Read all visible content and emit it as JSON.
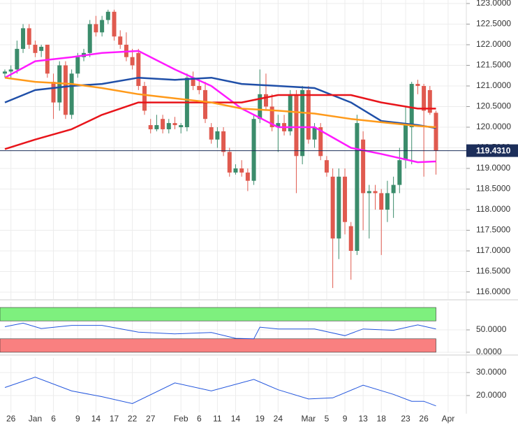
{
  "chart_data": [
    {
      "type": "candlestick",
      "xlim": [
        -0.8,
        76
      ],
      "xticks": [
        {
          "value": 1,
          "label": "26"
        },
        {
          "value": 5,
          "label": "Jan"
        },
        {
          "value": 8,
          "label": "6"
        },
        {
          "value": 12,
          "label": "9"
        },
        {
          "value": 15,
          "label": "14"
        },
        {
          "value": 18,
          "label": "17"
        },
        {
          "value": 21,
          "label": "22"
        },
        {
          "value": 24,
          "label": "27"
        },
        {
          "value": 29,
          "label": "Feb"
        },
        {
          "value": 32,
          "label": "6"
        },
        {
          "value": 35,
          "label": "11"
        },
        {
          "value": 38,
          "label": "14"
        },
        {
          "value": 42,
          "label": "19"
        },
        {
          "value": 45,
          "label": "24"
        },
        {
          "value": 50,
          "label": "Mar"
        },
        {
          "value": 53,
          "label": "5"
        },
        {
          "value": 56,
          "label": "9"
        },
        {
          "value": 59,
          "label": "13"
        },
        {
          "value": 62,
          "label": "18"
        },
        {
          "value": 66,
          "label": "23"
        },
        {
          "value": 69,
          "label": "26"
        },
        {
          "value": 73,
          "label": "Apr"
        }
      ],
      "ylim": [
        115.83,
        123.085
      ],
      "yticks": [
        {
          "value": 116,
          "label": "116.0000"
        },
        {
          "value": 116.5,
          "label": "116.5000"
        },
        {
          "value": 117,
          "label": "117.0000"
        },
        {
          "value": 117.5,
          "label": "117.5000"
        },
        {
          "value": 118,
          "label": "118.0000"
        },
        {
          "value": 118.5,
          "label": "118.5000"
        },
        {
          "value": 119,
          "label": "119.0000"
        },
        {
          "value": 119.5,
          "label": "119.5000"
        },
        {
          "value": 120,
          "label": "120.0000"
        },
        {
          "value": 120.5,
          "label": "120.5000"
        },
        {
          "value": 121,
          "label": "121.0000"
        },
        {
          "value": 121.5,
          "label": "121.5000"
        },
        {
          "value": 122,
          "label": "122.0000"
        },
        {
          "value": 122.5,
          "label": "122.5000"
        },
        {
          "value": 123,
          "label": "123.0000"
        }
      ],
      "grid": true,
      "up_color": "#3b8c6b",
      "down_color": "#e05a4f",
      "ohlc": [
        [
          121.3,
          121.4,
          121.2,
          121.35
        ],
        [
          121.35,
          121.5,
          121.2,
          121.4
        ],
        [
          121.4,
          122.1,
          121.3,
          121.9
        ],
        [
          121.9,
          122.5,
          121.8,
          122.4
        ],
        [
          122.4,
          122.5,
          121.9,
          122.0
        ],
        [
          122.0,
          122.1,
          121.7,
          121.8
        ],
        [
          121.85,
          122.0,
          121.7,
          121.95
        ],
        [
          122.0,
          122.0,
          121.2,
          121.3
        ],
        [
          121.1,
          121.3,
          120.2,
          120.6
        ],
        [
          120.6,
          121.6,
          120.4,
          121.5
        ],
        [
          121.5,
          121.6,
          120.2,
          120.3
        ],
        [
          120.3,
          121.4,
          120.2,
          121.3
        ],
        [
          121.3,
          121.8,
          121.2,
          121.7
        ],
        [
          121.7,
          121.9,
          121.6,
          121.8
        ],
        [
          121.8,
          122.6,
          121.7,
          122.5
        ],
        [
          122.5,
          122.7,
          122.2,
          122.3
        ],
        [
          122.3,
          122.7,
          122.2,
          122.6
        ],
        [
          122.6,
          122.85,
          122.5,
          122.8
        ],
        [
          122.8,
          122.85,
          122.1,
          122.2
        ],
        [
          122.2,
          122.35,
          121.9,
          122.0
        ],
        [
          122.0,
          122.3,
          121.6,
          121.7
        ],
        [
          121.7,
          121.9,
          121.4,
          121.5
        ],
        [
          121.8,
          121.9,
          120.9,
          121.0
        ],
        [
          121.0,
          121.1,
          120.3,
          120.4
        ],
        [
          120.05,
          120.2,
          119.85,
          119.95
        ],
        [
          119.95,
          120.3,
          119.9,
          120.05
        ],
        [
          120.2,
          120.3,
          119.85,
          119.95
        ],
        [
          119.95,
          120.2,
          119.85,
          120.1
        ],
        [
          120.1,
          120.25,
          119.95,
          120.05
        ],
        [
          120.0,
          120.1,
          119.85,
          120.05
        ],
        [
          120.0,
          121.3,
          119.9,
          121.2
        ],
        [
          121.2,
          121.35,
          120.9,
          121.0
        ],
        [
          121.0,
          121.2,
          120.8,
          120.9
        ],
        [
          120.9,
          121.1,
          120.1,
          120.2
        ],
        [
          120.0,
          120.1,
          119.6,
          119.7
        ],
        [
          119.7,
          120.0,
          119.5,
          119.9
        ],
        [
          119.9,
          120.0,
          119.3,
          119.4
        ],
        [
          119.4,
          119.5,
          118.8,
          118.9
        ],
        [
          118.9,
          119.1,
          118.85,
          119.0
        ],
        [
          119.0,
          119.2,
          118.8,
          118.9
        ],
        [
          118.9,
          119.0,
          118.45,
          118.7
        ],
        [
          118.7,
          120.3,
          118.6,
          120.2
        ],
        [
          120.2,
          121.4,
          120.1,
          120.8
        ],
        [
          120.8,
          121.3,
          120.4,
          120.5
        ],
        [
          120.5,
          120.8,
          119.9,
          120.0
        ],
        [
          120.0,
          120.3,
          119.4,
          120.1
        ],
        [
          120.1,
          120.3,
          119.8,
          119.9
        ],
        [
          119.9,
          120.9,
          119.8,
          120.8
        ],
        [
          120.8,
          120.9,
          118.4,
          119.3
        ],
        [
          119.3,
          121.0,
          119.1,
          120.9
        ],
        [
          120.9,
          121.0,
          119.6,
          119.7
        ],
        [
          119.7,
          120.1,
          119.5,
          120.0
        ],
        [
          120.0,
          120.1,
          119.2,
          119.3
        ],
        [
          119.2,
          119.3,
          118.8,
          118.9
        ],
        [
          118.8,
          119.0,
          116.1,
          117.3
        ],
        [
          117.3,
          119.0,
          116.8,
          118.8
        ],
        [
          118.8,
          119.0,
          117.4,
          117.7
        ],
        [
          117.6,
          117.7,
          116.3,
          117.0
        ],
        [
          117.0,
          120.3,
          116.9,
          120.1
        ],
        [
          119.7,
          119.9,
          117.5,
          118.4
        ],
        [
          118.4,
          118.6,
          117.3,
          118.45
        ],
        [
          118.45,
          118.6,
          118.0,
          118.4
        ],
        [
          118.4,
          118.5,
          116.9,
          118.0
        ],
        [
          118.0,
          118.7,
          117.7,
          118.4
        ],
        [
          118.4,
          118.8,
          117.8,
          118.6
        ],
        [
          118.6,
          119.5,
          118.4,
          119.2
        ],
        [
          119.2,
          120.5,
          119.0,
          120.1
        ],
        [
          120.0,
          121.1,
          119.1,
          121.05
        ],
        [
          121.05,
          121.15,
          120.8,
          121.0
        ],
        [
          121.0,
          121.05,
          118.8,
          120.4
        ],
        [
          120.9,
          121.0,
          120.3,
          120.35
        ],
        [
          120.35,
          120.4,
          118.85,
          119.43
        ]
      ],
      "overlays": [
        {
          "color": "#ff1aff",
          "x": [
            0,
            5,
            11,
            16,
            22,
            28,
            34,
            39,
            45,
            51,
            57,
            62,
            68,
            71
          ],
          "values": [
            121.2,
            121.6,
            121.7,
            121.8,
            121.85,
            121.4,
            121.0,
            120.45,
            120.0,
            120.0,
            119.5,
            119.35,
            119.15,
            119.17
          ]
        },
        {
          "color": "#1f4fa8",
          "x": [
            0,
            5,
            11,
            16,
            22,
            28,
            34,
            39,
            45,
            51,
            57,
            62,
            68,
            71
          ],
          "values": [
            120.6,
            120.9,
            121.0,
            121.05,
            121.2,
            121.15,
            121.2,
            121.05,
            121.0,
            120.95,
            120.6,
            120.15,
            120.05,
            119.98
          ]
        },
        {
          "color": "#e8141a",
          "x": [
            0,
            5,
            11,
            16,
            22,
            28,
            34,
            39,
            45,
            51,
            57,
            62,
            68,
            71
          ],
          "values": [
            119.47,
            119.7,
            119.95,
            120.3,
            120.6,
            120.6,
            120.6,
            120.6,
            120.78,
            120.78,
            120.78,
            120.6,
            120.45,
            120.45
          ]
        },
        {
          "color": "#ff9a1a",
          "x": [
            0,
            5,
            11,
            16,
            22,
            28,
            34,
            39,
            45,
            51,
            57,
            62,
            68,
            71
          ],
          "values": [
            121.2,
            121.1,
            121.05,
            120.95,
            120.8,
            120.7,
            120.6,
            120.45,
            120.4,
            120.33,
            120.2,
            120.12,
            120.03,
            120.0
          ]
        }
      ],
      "last_price": {
        "value": 119.431,
        "label": "119.4310"
      }
    },
    {
      "type": "line",
      "ylim": [
        -1.6,
        112.5
      ],
      "yticks": [
        {
          "value": 0,
          "label": "0.0000"
        },
        {
          "value": 50,
          "label": "50.0000"
        }
      ],
      "zones": [
        {
          "from": 70,
          "to": 100,
          "color": "#7ef07e"
        },
        {
          "from": 0,
          "to": 30,
          "color": "#f98080"
        }
      ],
      "color": "#2255dd",
      "x": [
        0,
        3,
        6,
        11,
        16,
        22,
        28,
        34,
        38,
        41,
        42,
        45,
        51,
        56,
        59,
        64,
        68,
        71
      ],
      "values": [
        57,
        65,
        53,
        60,
        60,
        45,
        41,
        44,
        31,
        30,
        56,
        52,
        52,
        37,
        52,
        49,
        61,
        52
      ]
    },
    {
      "type": "line",
      "ylim": [
        12.7,
        36.4
      ],
      "yticks": [
        {
          "value": 20,
          "label": "20.0000"
        },
        {
          "value": 30,
          "label": "30.0000"
        }
      ],
      "color": "#2255dd",
      "x": [
        0,
        5,
        11,
        16,
        21,
        28,
        34,
        41,
        45,
        50,
        54,
        59,
        64,
        67,
        69,
        71
      ],
      "values": [
        23.5,
        28,
        22,
        19.5,
        16.5,
        25.5,
        22,
        27,
        22.5,
        18.5,
        19,
        24.5,
        20.5,
        17.5,
        17.5,
        15.5
      ]
    }
  ]
}
